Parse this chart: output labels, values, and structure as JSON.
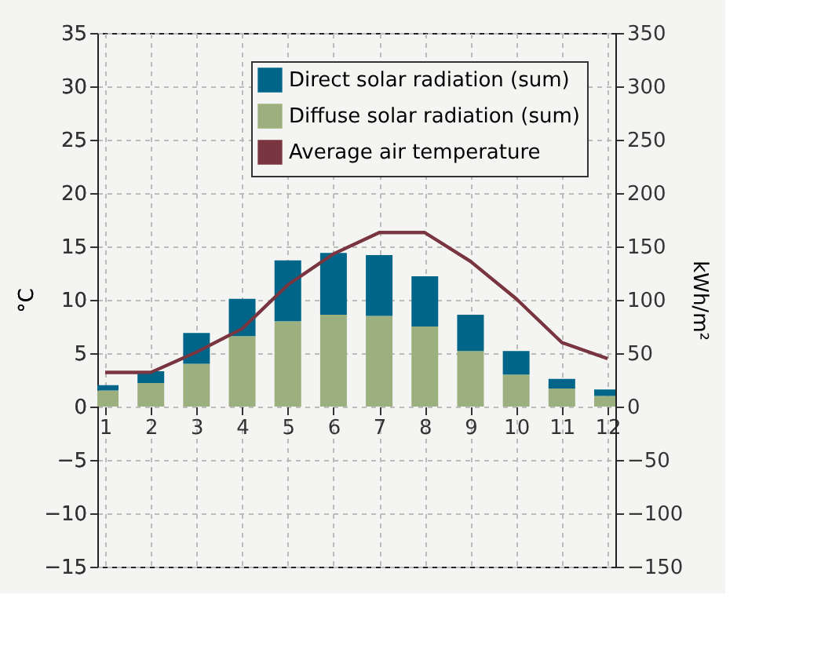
{
  "chart_data": {
    "type": "bar",
    "stacked": true,
    "x": [
      1,
      2,
      3,
      4,
      5,
      6,
      7,
      8,
      9,
      10,
      11,
      12
    ],
    "xlim": [
      1,
      12
    ],
    "xticks": [
      1,
      2,
      3,
      4,
      5,
      6,
      7,
      8,
      9,
      10,
      11,
      12
    ],
    "ylabel": "°C",
    "y2label": "kWh/m²",
    "ylim": [
      -15,
      35
    ],
    "yticks": [
      -15,
      -10,
      -5,
      0,
      5,
      10,
      15,
      20,
      25,
      30,
      35
    ],
    "y2lim": [
      -150,
      350
    ],
    "y2ticks": [
      -150,
      -100,
      -50,
      0,
      50,
      100,
      150,
      200,
      250,
      300,
      350
    ],
    "grid": true,
    "legend": "top right",
    "series": [
      {
        "name": "Diffuse solar radiation (sum)",
        "color": "#9caf7f",
        "axis": "y2",
        "values": [
          15,
          22,
          40,
          66,
          80,
          86,
          85,
          75,
          52,
          30,
          17,
          10
        ]
      },
      {
        "name": "Direct solar radiation (sum)",
        "color": "#006689",
        "axis": "y2",
        "values": [
          5,
          11,
          29,
          35,
          57,
          58,
          57,
          47,
          34,
          22,
          9,
          6
        ]
      },
      {
        "name": "Average air temperature",
        "type": "line",
        "color": "#7a3640",
        "axis": "y",
        "values": [
          3.2,
          3.2,
          5.1,
          7.3,
          11.4,
          14.3,
          16.3,
          16.3,
          13.6,
          10.1,
          6.0,
          4.5
        ]
      }
    ]
  }
}
